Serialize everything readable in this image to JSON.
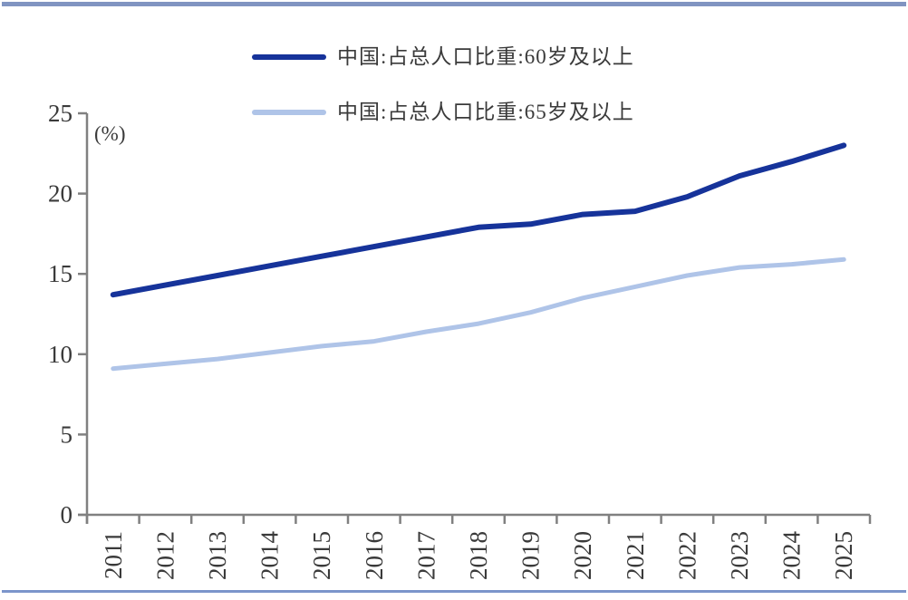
{
  "page": {
    "background": "#ffffff",
    "top_rule_color": "#8094c1",
    "bottom_rule_color": "#7c95cb"
  },
  "chart_data": {
    "type": "line",
    "title": "",
    "unit_label": "(%)",
    "xlabel": "",
    "ylabel": "(%)",
    "categories": [
      "2011",
      "2012",
      "2013",
      "2014",
      "2015",
      "2016",
      "2017",
      "2018",
      "2019",
      "2020",
      "2021",
      "2022",
      "2023",
      "2024",
      "2025"
    ],
    "series": [
      {
        "name": "中国:占总人口比重:60岁及以上",
        "color": "#16339a",
        "stroke_width": 6,
        "values": [
          13.7,
          14.3,
          14.9,
          15.5,
          16.1,
          16.7,
          17.3,
          17.9,
          18.1,
          18.7,
          18.9,
          19.8,
          21.1,
          22.0,
          23.0
        ]
      },
      {
        "name": "中国:占总人口比重:65岁及以上",
        "color": "#afc4e8",
        "stroke_width": 5,
        "values": [
          9.1,
          9.4,
          9.7,
          10.1,
          10.5,
          10.8,
          11.4,
          11.9,
          12.6,
          13.5,
          14.2,
          14.9,
          15.4,
          15.6,
          15.9
        ]
      }
    ],
    "y_ticks": [
      0,
      5,
      10,
      15,
      20,
      25
    ],
    "ylim": [
      0,
      25
    ],
    "grid": false,
    "legend_position": "top-center",
    "axis_color": "#808080",
    "tick_label_color": "#3a3a3a",
    "x_tick_label_rotation": -90
  }
}
